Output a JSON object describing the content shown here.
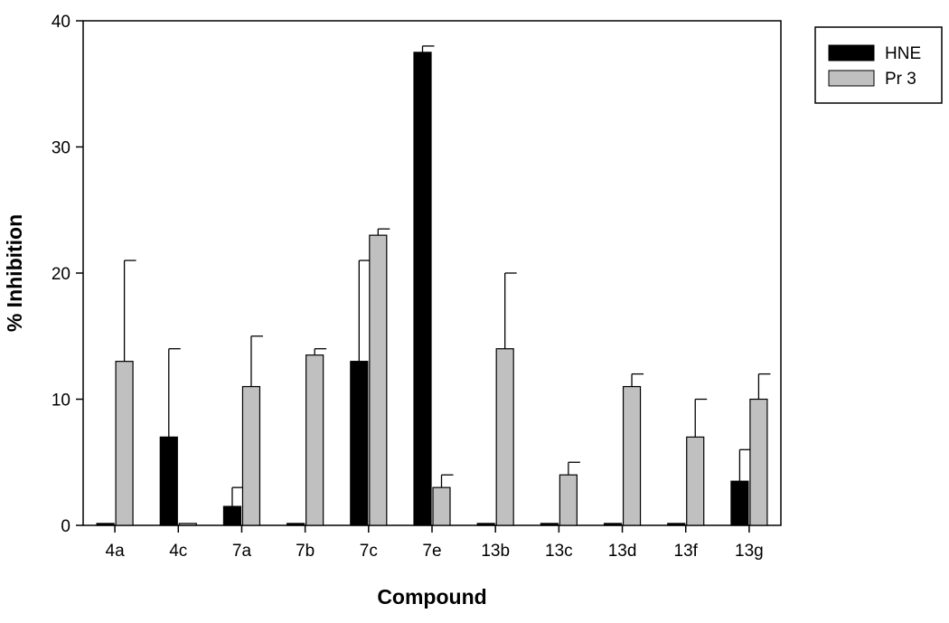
{
  "chart_data": {
    "type": "bar",
    "title": "",
    "xlabel": "Compound",
    "ylabel": "% Inhibition",
    "ylim": [
      0,
      40
    ],
    "yticks": [
      0,
      10,
      20,
      30,
      40
    ],
    "grid": false,
    "legend_position": "top-right-outside",
    "categories": [
      "4a",
      "4c",
      "7a",
      "7b",
      "7c",
      "7e",
      "13b",
      "13c",
      "13d",
      "13f",
      "13g"
    ],
    "series": [
      {
        "name": "HNE",
        "color": "#000000",
        "values": [
          0.15,
          7,
          1.5,
          0.15,
          13,
          37.5,
          0.15,
          0.15,
          0.15,
          0.15,
          3.5
        ],
        "error": [
          0,
          7,
          1.5,
          0,
          8,
          0.5,
          0,
          0,
          0,
          0,
          2.5
        ]
      },
      {
        "name": "Pr 3",
        "color": "#c0c0c0",
        "values": [
          13,
          0.15,
          11,
          13.5,
          23,
          3,
          14,
          4,
          11,
          7,
          10
        ],
        "error": [
          8,
          0,
          4,
          0.5,
          0.5,
          1,
          6,
          1,
          1,
          3,
          2
        ]
      }
    ]
  }
}
